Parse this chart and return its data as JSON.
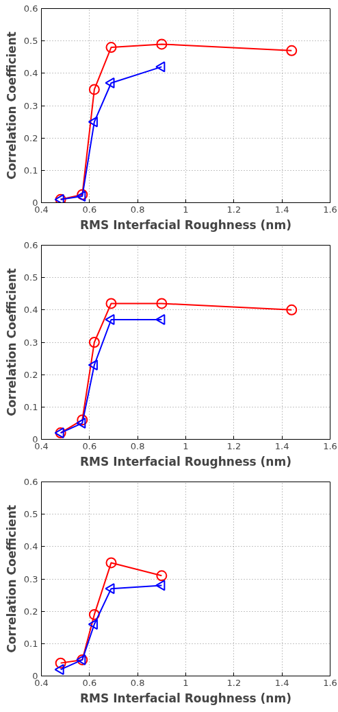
{
  "chart_data": [
    {
      "type": "line",
      "xlabel": "RMS Interfacial Roughness (nm)",
      "ylabel": "Correlation Coefficient",
      "xlim": [
        0.4,
        1.6
      ],
      "ylim": [
        0,
        0.6
      ],
      "xticks": [
        0.4,
        0.6,
        0.8,
        1,
        1.2,
        1.4,
        1.6
      ],
      "yticks": [
        0,
        0.1,
        0.2,
        0.3,
        0.4,
        0.5,
        0.6
      ],
      "grid": true,
      "line_style": "solid",
      "series": [
        {
          "color": "#ff0000",
          "marker": "circle",
          "x": [
            0.48,
            0.57,
            0.62,
            0.69,
            0.9,
            1.44
          ],
          "values": [
            0.01,
            0.025,
            0.35,
            0.48,
            0.49,
            0.47
          ]
        },
        {
          "color": "#0000ff",
          "marker": "triangle",
          "x": [
            0.48,
            0.57,
            0.62,
            0.69,
            0.9
          ],
          "values": [
            0.01,
            0.02,
            0.25,
            0.37,
            0.42
          ]
        }
      ]
    },
    {
      "type": "line",
      "xlabel": "RMS Interfacial Roughness (nm)",
      "ylabel": "Correlation Coefficient",
      "xlim": [
        0.4,
        1.6
      ],
      "ylim": [
        0,
        0.6
      ],
      "xticks": [
        0.4,
        0.6,
        0.8,
        1,
        1.2,
        1.4,
        1.6
      ],
      "yticks": [
        0,
        0.1,
        0.2,
        0.3,
        0.4,
        0.5,
        0.6
      ],
      "grid": true,
      "line_style": "solid",
      "series": [
        {
          "color": "#ff0000",
          "marker": "circle",
          "x": [
            0.48,
            0.57,
            0.62,
            0.69,
            0.9,
            1.44
          ],
          "values": [
            0.02,
            0.06,
            0.3,
            0.42,
            0.42,
            0.4
          ]
        },
        {
          "color": "#0000ff",
          "marker": "triangle",
          "x": [
            0.48,
            0.57,
            0.62,
            0.69,
            0.9
          ],
          "values": [
            0.02,
            0.05,
            0.23,
            0.37,
            0.37
          ]
        }
      ]
    },
    {
      "type": "line",
      "xlabel": "RMS Interfacial Roughness (nm)",
      "ylabel": "Correlation Coefficient",
      "xlim": [
        0.4,
        1.6
      ],
      "ylim": [
        0,
        0.6
      ],
      "xticks": [
        0.4,
        0.6,
        0.8,
        1,
        1.2,
        1.4,
        1.6
      ],
      "yticks": [
        0,
        0.1,
        0.2,
        0.3,
        0.4,
        0.5,
        0.6
      ],
      "grid": true,
      "line_style": "solid",
      "series": [
        {
          "color": "#ff0000",
          "marker": "circle",
          "x": [
            0.48,
            0.57,
            0.62,
            0.69,
            0.9
          ],
          "values": [
            0.04,
            0.05,
            0.19,
            0.35,
            0.31
          ]
        },
        {
          "color": "#0000ff",
          "marker": "triangle",
          "x": [
            0.48,
            0.57,
            0.62,
            0.69,
            0.9
          ],
          "values": [
            0.02,
            0.05,
            0.16,
            0.27,
            0.28
          ]
        }
      ]
    }
  ]
}
